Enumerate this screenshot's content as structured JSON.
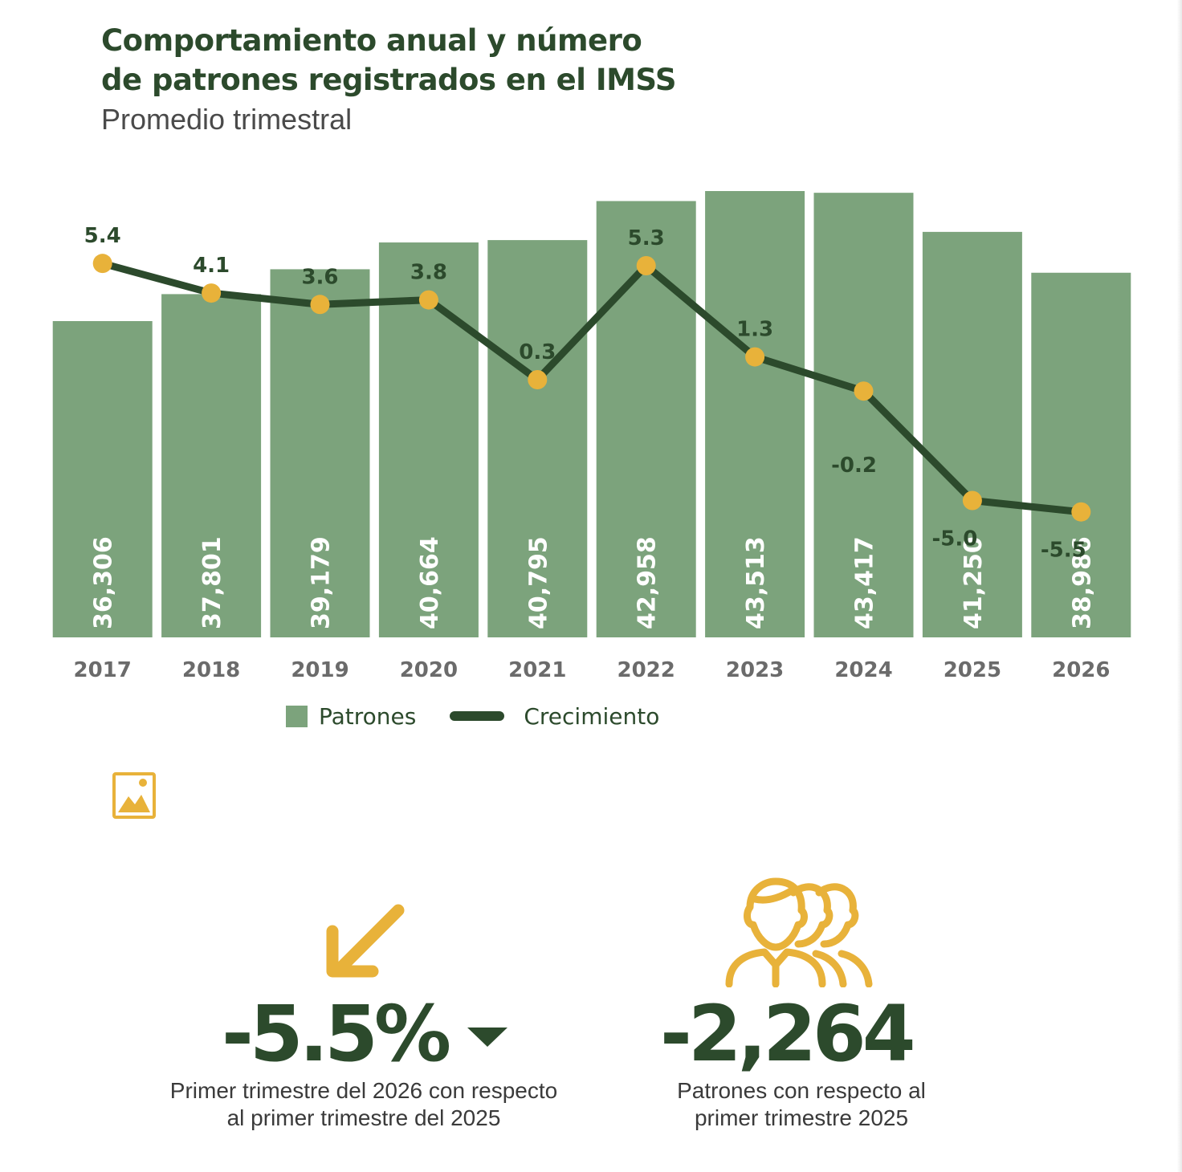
{
  "title_line1": "Comportamiento anual y número",
  "title_line2": "de patrones registrados en el IMSS",
  "subtitle": "Promedio trimestral",
  "legend": {
    "patrones": "Patrones",
    "crecimiento": "Crecimiento"
  },
  "colors": {
    "bar": "#7ca37c",
    "line": "#2c4a2c",
    "marker": "#e8b23a",
    "text_dark": "#2c4a2c",
    "axis_text": "#6b6b6b",
    "icon": "#e8b23a"
  },
  "chart_data": {
    "type": "bar",
    "categories": [
      "2017",
      "2018",
      "2019",
      "2020",
      "2021",
      "2022",
      "2023",
      "2024",
      "2025",
      "2026"
    ],
    "series": [
      {
        "name": "Patrones",
        "type": "bar",
        "values": [
          36306,
          37801,
          39179,
          40664,
          40795,
          42958,
          43513,
          43417,
          41250,
          38986
        ],
        "labels": [
          "36,306",
          "37,801",
          "39,179",
          "40,664",
          "40,795",
          "42,958",
          "43,513",
          "43,417",
          "41,250",
          "38,986"
        ]
      },
      {
        "name": "Crecimiento",
        "type": "line",
        "values": [
          5.4,
          4.1,
          3.6,
          3.8,
          0.3,
          5.3,
          1.3,
          -0.2,
          -5.0,
          -5.5
        ],
        "labels": [
          "5.4",
          "4.1",
          "3.6",
          "3.8",
          "0.3",
          "5.3",
          "1.3",
          "-0.2",
          "-5.0",
          "-5.5"
        ]
      }
    ],
    "legend_position": "bottom",
    "grid": false
  },
  "stats": [
    {
      "value": "-5.5%",
      "label_line1": "Primer trimestre del 2026 con respecto",
      "label_line2": "al primer trimestre del 2025"
    },
    {
      "value": "-2,264",
      "label_line1": "Patrones con respecto al",
      "label_line2": "primer trimestre 2025"
    }
  ]
}
